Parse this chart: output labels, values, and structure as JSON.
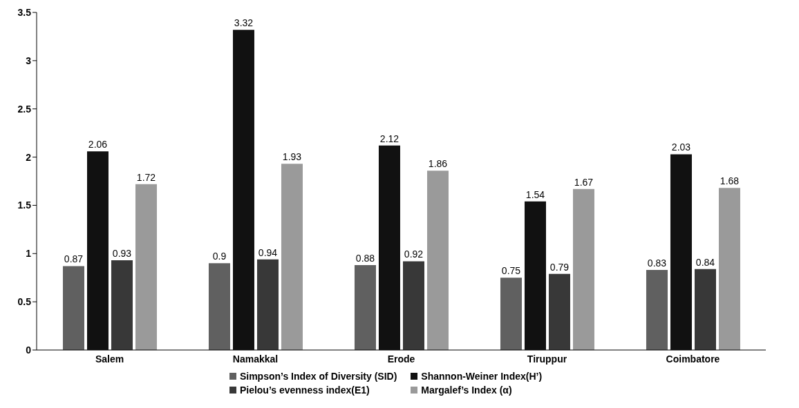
{
  "chart_data": {
    "type": "bar",
    "categories": [
      "Salem",
      "Namakkal",
      "Erode",
      "Tiruppur",
      "Coimbatore"
    ],
    "series": [
      {
        "name": "Simpson’s Index of Diversity (SID)",
        "color": "#606060",
        "values": [
          0.87,
          0.9,
          0.88,
          0.75,
          0.83
        ]
      },
      {
        "name": "Shannon-Weiner Index(H’)",
        "color": "#111111",
        "values": [
          2.06,
          3.32,
          2.12,
          1.54,
          2.03
        ]
      },
      {
        "name": "Pielou’s evenness index(E1)",
        "color": "#383838",
        "values": [
          0.93,
          0.94,
          0.92,
          0.79,
          0.84
        ]
      },
      {
        "name": "Margalef’s Index (α)",
        "color": "#9a9a9a",
        "values": [
          1.72,
          1.93,
          1.86,
          1.67,
          1.68
        ]
      }
    ],
    "ylim": [
      0,
      3.5
    ],
    "yticks": [
      0,
      0.5,
      1,
      1.5,
      2,
      2.5,
      3,
      3.5
    ],
    "grid": false,
    "legend": "bottom",
    "data_labels": true
  }
}
